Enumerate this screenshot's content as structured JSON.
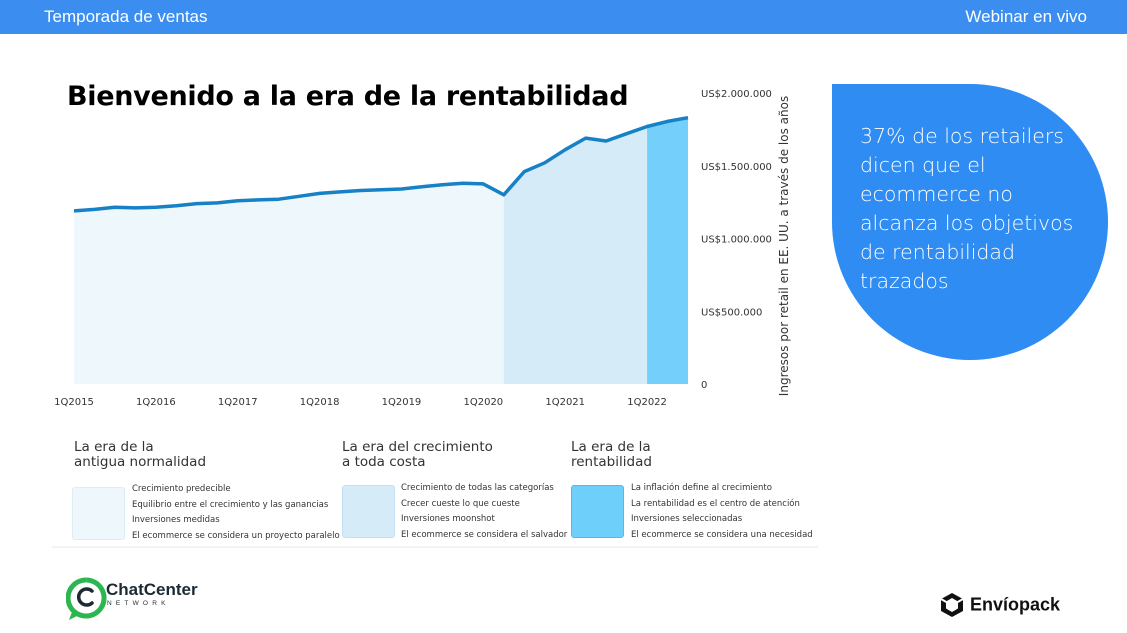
{
  "header": {
    "left": "Temporada de ventas",
    "right": "Webinar en vivo"
  },
  "title": "Bienvenido a la era de la rentabilidad",
  "bubble_text": "37% de los retailers dicen que el ecommerce no alcanza los objetivos de rentabilidad trazados",
  "chart_data": {
    "type": "area",
    "title": "Bienvenido a la era de la rentabilidad",
    "ylabel": "Ingresos por retail en EE. UU. a través de los años",
    "xlabel": "",
    "x_ticks": [
      "1Q2015",
      "1Q2016",
      "1Q2017",
      "1Q2018",
      "1Q2019",
      "1Q2020",
      "1Q2021",
      "1Q2022"
    ],
    "y_ticks": [
      "0",
      "US$500.000",
      "US$1.000.000",
      "US$1.500.000",
      "US$2.000.000"
    ],
    "ylim": [
      0,
      2000000
    ],
    "grid": false,
    "series": [
      {
        "x": [
          2015.0,
          2015.25,
          2015.5,
          2015.75,
          2016.0,
          2016.25,
          2016.5,
          2016.75,
          2017.0,
          2017.25,
          2017.5,
          2017.75,
          2018.0,
          2018.25,
          2018.5,
          2018.75,
          2019.0,
          2019.25,
          2019.5,
          2019.75,
          2020.0,
          2020.25,
          2020.5,
          2020.75,
          2021.0,
          2021.25,
          2021.5,
          2021.75,
          2022.0,
          2022.25,
          2022.5
        ],
        "values": [
          1190000,
          1200000,
          1215000,
          1210000,
          1215000,
          1225000,
          1240000,
          1245000,
          1260000,
          1265000,
          1270000,
          1290000,
          1310000,
          1320000,
          1330000,
          1335000,
          1340000,
          1355000,
          1370000,
          1380000,
          1375000,
          1300000,
          1460000,
          1520000,
          1610000,
          1690000,
          1670000,
          1720000,
          1770000,
          1805000,
          1830000
        ]
      }
    ],
    "eras": [
      {
        "name": "La era de la antigua normalidad",
        "from": 2015.0,
        "to": 2020.25,
        "color": "#eef7fb"
      },
      {
        "name": "La era del crecimiento a toda costa",
        "from": 2020.25,
        "to": 2022.0,
        "color": "#d6ebf8"
      },
      {
        "name": "La era de la rentabilidad",
        "from": 2022.0,
        "to": 2022.5,
        "color": "#74d0fb"
      }
    ],
    "line_color": "#1781c6"
  },
  "eras": [
    {
      "title_1": "La era de la",
      "title_2": "antigua normalidad",
      "color": "#eef7fb",
      "items": [
        "Crecimiento predecible",
        "Equilibrio entre el crecimiento y las ganancias",
        "Inversiones medidas",
        "El ecommerce se considera un proyecto paralelo"
      ]
    },
    {
      "title_1": "La era del crecimiento",
      "title_2": "a toda costa",
      "color": "#d6ebf8",
      "items": [
        "Crecimiento de todas las categorías",
        "Crecer cueste lo que cueste",
        "Inversiones moonshot",
        "El ecommerce se considera el salvador"
      ]
    },
    {
      "title_1": "La era de la",
      "title_2": "rentabilidad",
      "color": "#6ecffb",
      "items": [
        "La inflación define al crecimiento",
        "La rentabilidad es el centro de atención",
        "Inversiones seleccionadas",
        "El ecommerce se considera una necesidad"
      ]
    }
  ],
  "logos": {
    "chatcenter": "ChatCenter",
    "chatcenter_sub": "NETWORK",
    "enviopack": "Envíopack"
  },
  "colors": {
    "header": "#3b8ef0",
    "bubble": "#2f8cf3",
    "line": "#1781c6"
  }
}
